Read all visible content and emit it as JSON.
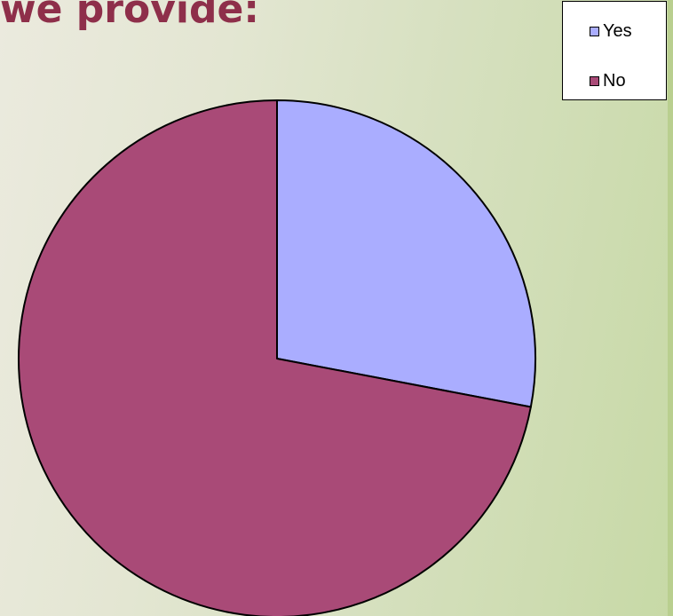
{
  "slide": {
    "title": "we provide:"
  },
  "chart_data": {
    "type": "pie",
    "categories": [
      "Yes",
      "No"
    ],
    "values": [
      28,
      72
    ],
    "colors": [
      "#aaadff",
      "#a94a77"
    ],
    "legend_position": "top-right"
  },
  "legend": {
    "items": [
      {
        "label": "Yes",
        "color": "#aaadff"
      },
      {
        "label": "No",
        "color": "#a94a77"
      }
    ]
  }
}
